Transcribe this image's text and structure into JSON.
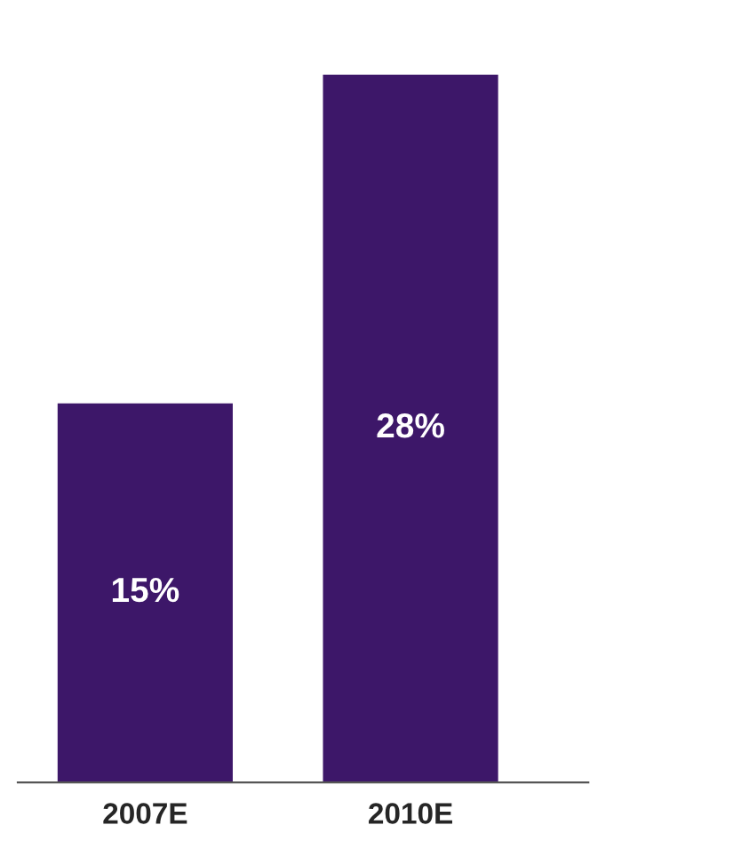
{
  "chart_data": {
    "type": "bar",
    "categories": [
      "2007E",
      "2010E"
    ],
    "values": [
      15,
      28
    ],
    "value_labels": [
      "15%",
      "28%"
    ],
    "color": "#3d1769",
    "grid": false,
    "legend": false
  }
}
